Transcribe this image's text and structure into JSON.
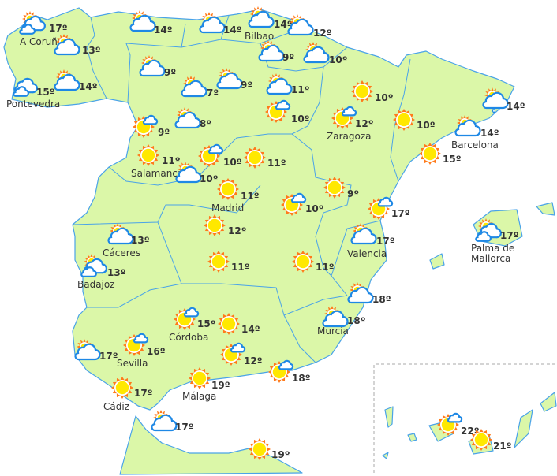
{
  "map": {
    "colors": {
      "land": "#dbf7a8",
      "border": "#4aa3e8",
      "sun_rays": "#ff7a1a",
      "sun_core": "#ffe800",
      "cloud_stroke": "#1e88e5",
      "text": "#333333"
    },
    "stations": [
      {
        "icon": "partly-cloudy-double",
        "temp": "17º"
      },
      {
        "icon": "partly-cloudy",
        "temp": "13º"
      },
      {
        "icon": "partly-cloudy",
        "temp": "14º"
      },
      {
        "icon": "partly-cloudy",
        "temp": "14º"
      },
      {
        "icon": "partly-cloudy",
        "temp": "14º"
      },
      {
        "icon": "partly-cloudy",
        "temp": "12º"
      },
      {
        "icon": "partly-cloudy",
        "temp": "9º"
      },
      {
        "icon": "partly-cloudy",
        "temp": "10º"
      },
      {
        "icon": "cloudy",
        "temp": "15º"
      },
      {
        "icon": "partly-cloudy",
        "temp": "14º"
      },
      {
        "icon": "partly-cloudy",
        "temp": "9º"
      },
      {
        "icon": "partly-cloudy",
        "temp": "7º"
      },
      {
        "icon": "partly-cloudy",
        "temp": "9º"
      },
      {
        "icon": "partly-cloudy",
        "temp": "11º"
      },
      {
        "icon": "sun-small-cloud",
        "temp": "10º"
      },
      {
        "icon": "sun",
        "temp": "10º"
      },
      {
        "icon": "sun-small-cloud",
        "temp": "12º"
      },
      {
        "icon": "sun",
        "temp": "10º"
      },
      {
        "icon": "rain",
        "temp": "14º"
      },
      {
        "icon": "partly-cloudy",
        "temp": "14º"
      },
      {
        "icon": "sun",
        "temp": "15º"
      },
      {
        "icon": "sun-small-cloud",
        "temp": "9º"
      },
      {
        "icon": "partly-cloudy",
        "temp": "8º"
      },
      {
        "icon": "sun",
        "temp": "11º"
      },
      {
        "icon": "sun-small-cloud",
        "temp": "10º"
      },
      {
        "icon": "sun",
        "temp": "11º"
      },
      {
        "icon": "partly-cloudy",
        "temp": "10º"
      },
      {
        "icon": "sun",
        "temp": "11º"
      },
      {
        "icon": "sun",
        "temp": "9º"
      },
      {
        "icon": "sun-small-cloud",
        "temp": "10º"
      },
      {
        "icon": "sun-small-cloud",
        "temp": "17º"
      },
      {
        "icon": "sun",
        "temp": "12º"
      },
      {
        "icon": "partly-cloudy",
        "temp": "13º"
      },
      {
        "icon": "partly-cloudy",
        "temp": "17º"
      },
      {
        "icon": "partly-cloudy-double",
        "temp": "17º"
      },
      {
        "icon": "partly-cloudy-double",
        "temp": "13º"
      },
      {
        "icon": "sun",
        "temp": "11º"
      },
      {
        "icon": "sun",
        "temp": "11º"
      },
      {
        "icon": "partly-cloudy",
        "temp": "18º"
      },
      {
        "icon": "partly-cloudy",
        "temp": "18º"
      },
      {
        "icon": "sun-small-cloud",
        "temp": "15º"
      },
      {
        "icon": "sun",
        "temp": "14º"
      },
      {
        "icon": "partly-cloudy",
        "temp": "17º"
      },
      {
        "icon": "sun-small-cloud",
        "temp": "16º"
      },
      {
        "icon": "sun-small-cloud",
        "temp": "12º"
      },
      {
        "icon": "sun-small-cloud",
        "temp": "18º"
      },
      {
        "icon": "sun",
        "temp": "19º"
      },
      {
        "icon": "sun",
        "temp": "17º"
      },
      {
        "icon": "partly-cloudy",
        "temp": "17º"
      },
      {
        "icon": "sun",
        "temp": "19º"
      },
      {
        "icon": "sun-small-cloud",
        "temp": "22º"
      },
      {
        "icon": "sun",
        "temp": "21º"
      }
    ],
    "cities": [
      "A Coruña",
      "Bilbao",
      "Pontevedra",
      "Zaragoza",
      "Barcelona",
      "Salamanca",
      "Madrid",
      "Cáceres",
      "Valencia",
      "Palma de",
      "Mallorca",
      "Badajoz",
      "Córdoba",
      "Murcia",
      "Sevilla",
      "Málaga",
      "Cádiz"
    ]
  }
}
